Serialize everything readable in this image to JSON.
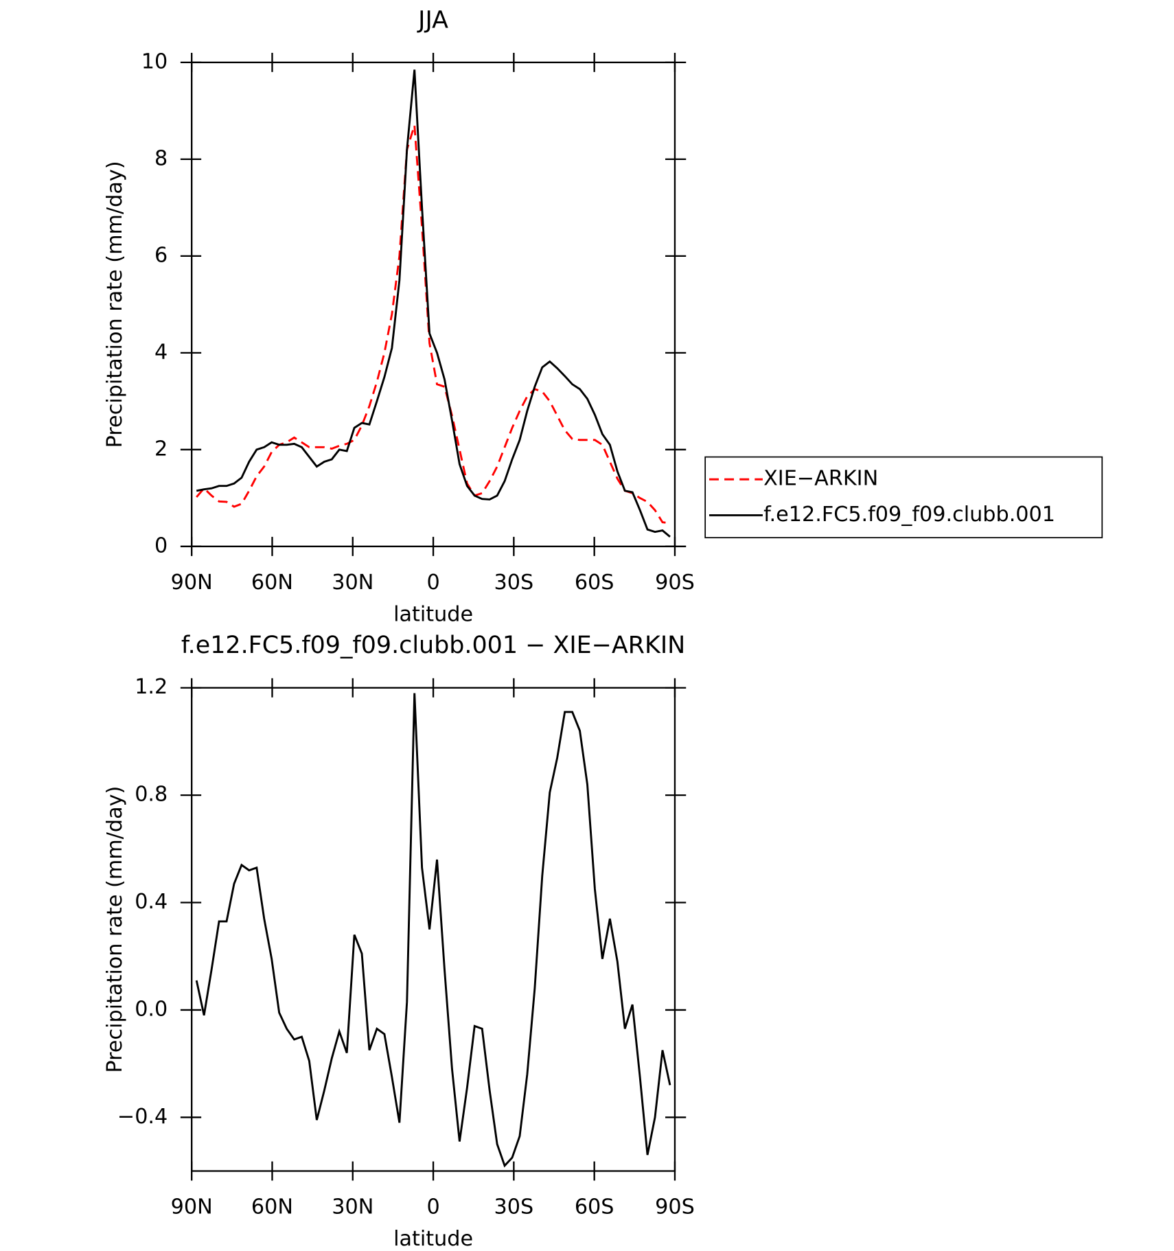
{
  "chart_data": [
    {
      "type": "line",
      "title": "JJA",
      "xlabel": "latitude",
      "ylabel": "Precipitation rate (mm/day)",
      "x": [
        88.2,
        85.4,
        82.6,
        79.8,
        77,
        74.2,
        71.4,
        68.6,
        65.8,
        63,
        60.2,
        57.4,
        54.6,
        51.8,
        49,
        46.2,
        43.4,
        40.6,
        37.8,
        35,
        32.2,
        29.4,
        26.6,
        23.8,
        21,
        18.2,
        15.4,
        12.6,
        9.8,
        7,
        4.2,
        1.4,
        -1.4,
        -4.2,
        -7,
        -9.8,
        -12.6,
        -15.4,
        -18.2,
        -21,
        -23.8,
        -26.6,
        -29.4,
        -32.2,
        -35,
        -37.8,
        -40.6,
        -43.4,
        -46.2,
        -49,
        -51.8,
        -54.6,
        -57.4,
        -60.2,
        -63,
        -65.8,
        -68.6,
        -71.4,
        -74.2,
        -77,
        -79.8,
        -82.6,
        -85.4,
        -88.2
      ],
      "series": [
        {
          "name": "XIE−ARKIN",
          "color": "#ff0000",
          "dash": true,
          "values": [
            1.02,
            1.2,
            1.05,
            0.93,
            0.92,
            0.82,
            0.88,
            1.15,
            1.45,
            1.65,
            1.95,
            2.1,
            2.15,
            2.25,
            2.15,
            2.05,
            2.05,
            2.05,
            2.02,
            2.08,
            2.12,
            2.2,
            2.5,
            2.9,
            3.4,
            4.0,
            4.8,
            6.0,
            8.2,
            8.7,
            6.6,
            4.2,
            3.35,
            3.3,
            2.7,
            2.0,
            1.3,
            1.05,
            1.1,
            1.35,
            1.65,
            2.05,
            2.45,
            2.8,
            3.1,
            3.25,
            3.2,
            3.0,
            2.7,
            2.4,
            2.22,
            2.2,
            2.2,
            2.2,
            2.1,
            1.75,
            1.4,
            1.15,
            1.1,
            1.0,
            0.92,
            0.75,
            0.5,
            0.48
          ]
        },
        {
          "name": "f.e12.FC5.f09_f09.clubb.001",
          "color": "#000000",
          "dash": false,
          "values": [
            1.15,
            1.18,
            1.2,
            1.25,
            1.25,
            1.3,
            1.42,
            1.75,
            2.0,
            2.05,
            2.15,
            2.1,
            2.1,
            2.12,
            2.05,
            1.85,
            1.65,
            1.75,
            1.8,
            2.0,
            1.97,
            2.45,
            2.55,
            2.52,
            3.0,
            3.5,
            4.1,
            5.5,
            8.2,
            9.85,
            7.0,
            4.4,
            4.0,
            3.45,
            2.6,
            1.7,
            1.25,
            1.05,
            0.98,
            0.97,
            1.05,
            1.35,
            1.8,
            2.2,
            2.8,
            3.3,
            3.7,
            3.82,
            3.68,
            3.52,
            3.35,
            3.25,
            3.05,
            2.72,
            2.32,
            2.1,
            1.55,
            1.15,
            1.12,
            0.75,
            0.35,
            0.3,
            0.33,
            0.2
          ]
        }
      ],
      "xlim": [
        90,
        -90
      ],
      "xticks": [
        {
          "value": 90,
          "label": "90N"
        },
        {
          "value": 60,
          "label": "60N"
        },
        {
          "value": 30,
          "label": "30N"
        },
        0,
        {
          "value": -30,
          "label": "30S"
        },
        {
          "value": -60,
          "label": "60S"
        },
        {
          "value": -90,
          "label": "90S"
        }
      ],
      "ylim": [
        0,
        10
      ],
      "yticks": [
        0,
        2,
        4,
        6,
        8,
        10
      ],
      "legend": "right"
    },
    {
      "type": "line",
      "title": "f.e12.FC5.f09_f09.clubb.001 − XIE−ARKIN",
      "xlabel": "latitude",
      "ylabel": "Precipitation rate (mm/day)",
      "x": [
        88.2,
        85.4,
        82.6,
        79.8,
        77,
        74.2,
        71.4,
        68.6,
        65.8,
        63,
        60.2,
        57.4,
        54.6,
        51.8,
        49,
        46.2,
        43.4,
        40.6,
        37.8,
        35,
        32.2,
        29.4,
        26.6,
        23.8,
        21,
        18.2,
        15.4,
        12.6,
        9.8,
        7,
        4.2,
        1.4,
        -1.4,
        -4.2,
        -7,
        -9.8,
        -12.6,
        -15.4,
        -18.2,
        -21,
        -23.8,
        -26.6,
        -29.4,
        -32.2,
        -35,
        -37.8,
        -40.6,
        -43.4,
        -46.2,
        -49,
        -51.8,
        -54.6,
        -57.4,
        -60.2,
        -63,
        -65.8,
        -68.6,
        -71.4,
        -74.2,
        -77,
        -79.8,
        -82.6,
        -85.4,
        -88.2
      ],
      "series": [
        {
          "color": "#000000",
          "dash": false,
          "values": [
            0.11,
            -0.02,
            0.15,
            0.33,
            0.33,
            0.47,
            0.54,
            0.52,
            0.53,
            0.34,
            0.19,
            -0.01,
            -0.07,
            -0.11,
            -0.1,
            -0.19,
            -0.41,
            -0.3,
            -0.18,
            -0.08,
            -0.16,
            0.28,
            0.21,
            -0.15,
            -0.07,
            -0.09,
            -0.25,
            -0.42,
            0.03,
            1.18,
            0.53,
            0.3,
            0.56,
            0.15,
            -0.22,
            -0.49,
            -0.29,
            -0.06,
            -0.07,
            -0.3,
            -0.5,
            -0.58,
            -0.55,
            -0.47,
            -0.24,
            0.08,
            0.5,
            0.81,
            0.94,
            1.11,
            1.11,
            1.04,
            0.84,
            0.45,
            0.19,
            0.34,
            0.18,
            -0.07,
            0.02,
            -0.25,
            -0.54,
            -0.4,
            -0.15,
            -0.28
          ]
        }
      ],
      "xlim": [
        90,
        -90
      ],
      "xticks": [
        {
          "value": 90,
          "label": "90N"
        },
        {
          "value": 60,
          "label": "60N"
        },
        {
          "value": 30,
          "label": "30N"
        },
        0,
        {
          "value": -30,
          "label": "30S"
        },
        {
          "value": -60,
          "label": "60S"
        },
        {
          "value": -90,
          "label": "90S"
        }
      ],
      "ylim": [
        -0.6,
        1.2
      ],
      "yticks": [
        {
          "value": -0.4,
          "label": "−0.4"
        },
        {
          "value": 0,
          "label": "0.0"
        },
        0.4,
        0.8,
        1.2
      ]
    }
  ]
}
